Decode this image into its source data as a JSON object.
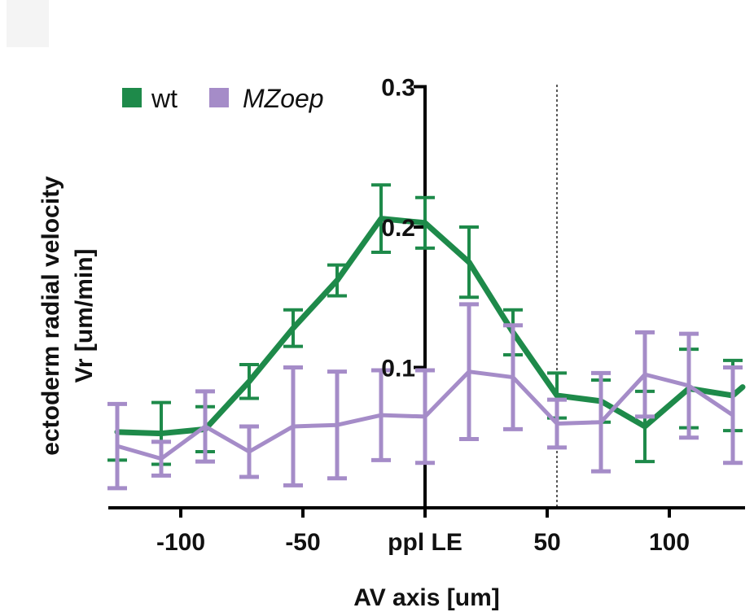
{
  "chart_data": {
    "type": "line",
    "xlabel": "AV axis [um]",
    "ylabel_line1": "ectoderm radial velocity",
    "ylabel_line2": "Vr [um/min]",
    "x_ticks": [
      {
        "value": -100,
        "label": "-100"
      },
      {
        "value": -50,
        "label": "-50"
      },
      {
        "value": 0,
        "label": "ppl LE"
      },
      {
        "value": 50,
        "label": "50"
      },
      {
        "value": 100,
        "label": "100"
      }
    ],
    "y_ticks": [
      {
        "value": 0.1,
        "label": "0.1"
      },
      {
        "value": 0.2,
        "label": "0.2"
      },
      {
        "value": 0.3,
        "label": "0.3"
      }
    ],
    "xlim": [
      -130,
      130
    ],
    "ylim": [
      0,
      0.3
    ],
    "reference_line_x": 54,
    "legend": [
      {
        "name": "wt",
        "color": "#1e8a4a"
      },
      {
        "name": "MZoep",
        "color": "#a58cc8",
        "italic": true
      }
    ],
    "series": [
      {
        "name": "wt",
        "color": "#1e8a4a",
        "x": [
          -126,
          -108,
          -90,
          -72,
          -54,
          -36,
          -18,
          0,
          18,
          36,
          54,
          72,
          90,
          108,
          126,
          130
        ],
        "y": [
          0.054,
          0.053,
          0.056,
          0.09,
          0.128,
          0.162,
          0.206,
          0.203,
          0.175,
          0.125,
          0.08,
          0.076,
          0.058,
          0.085,
          0.08,
          0.086
        ],
        "err": [
          0.02,
          0.022,
          0.016,
          0.012,
          0.013,
          0.011,
          0.024,
          0.018,
          0.025,
          0.016,
          0.016,
          0.015,
          0.025,
          0.028,
          0.025,
          0.0
        ]
      },
      {
        "name": "MZoep",
        "color": "#a58cc8",
        "x": [
          -126,
          -108,
          -90,
          -72,
          -54,
          -36,
          -18,
          0,
          18,
          36,
          54,
          72,
          90,
          108,
          126
        ],
        "y": [
          0.044,
          0.035,
          0.058,
          0.04,
          0.058,
          0.059,
          0.066,
          0.065,
          0.097,
          0.093,
          0.06,
          0.061,
          0.095,
          0.087,
          0.066
        ],
        "err": [
          0.03,
          0.012,
          0.025,
          0.018,
          0.042,
          0.038,
          0.032,
          0.033,
          0.048,
          0.037,
          0.017,
          0.035,
          0.03,
          0.037,
          0.034
        ]
      }
    ]
  }
}
